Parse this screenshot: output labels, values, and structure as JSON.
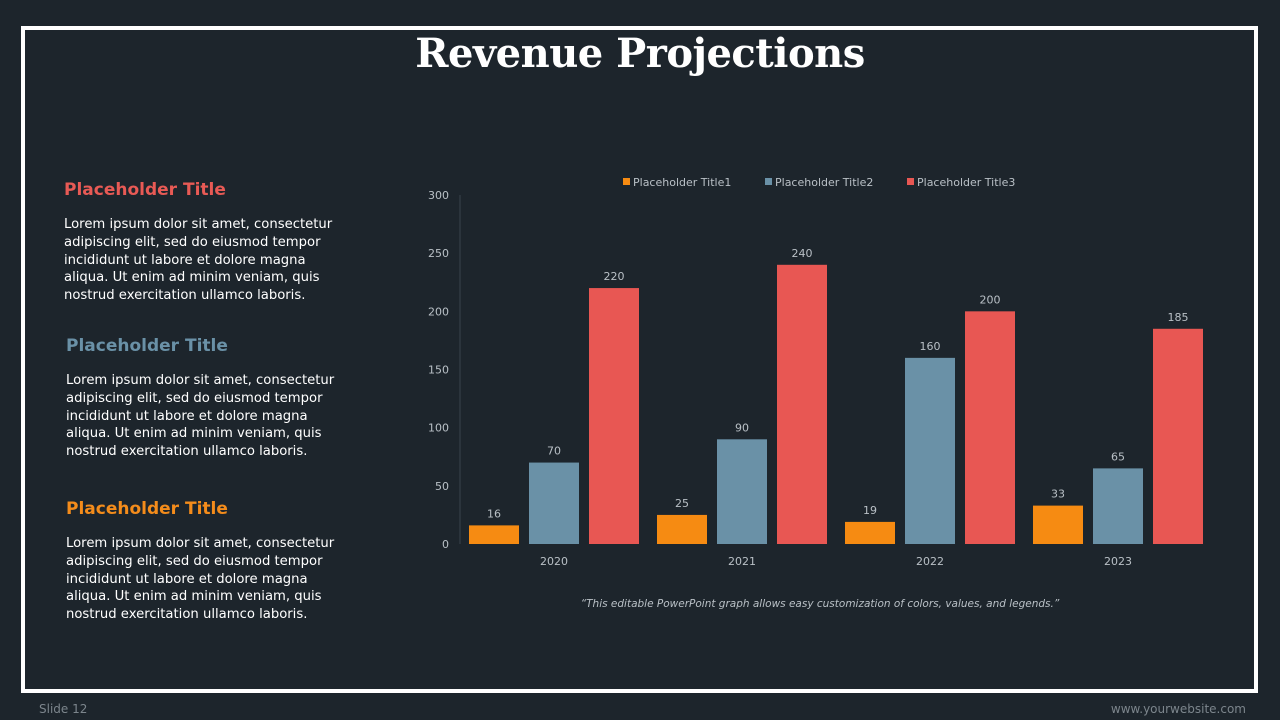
{
  "slide": {
    "title": "Revenue Projections",
    "footer_left": "Slide 12",
    "footer_right": "www.yourwebsite.com",
    "caption": "“This editable PowerPoint graph allows easy customization of colors, values, and legends.”"
  },
  "sections": [
    {
      "title": "Placeholder Title",
      "color": "#e85a55",
      "body": "Lorem ipsum dolor sit amet, consectetur adipiscing elit, sed do eiusmod tempor incididunt ut labore et dolore magna aliqua. Ut enim ad minim veniam, quis nostrud exercitation ullamco laboris."
    },
    {
      "title": "Placeholder Title",
      "color": "#6a91a7",
      "body": "Lorem ipsum dolor sit amet, consectetur adipiscing elit, sed do eiusmod tempor incididunt ut labore et dolore magna aliqua. Ut enim ad minim veniam, quis nostrud exercitation ullamco laboris."
    },
    {
      "title": "Placeholder Title",
      "color": "#f48c1b",
      "body": "Lorem ipsum dolor sit amet, consectetur adipiscing elit, sed do eiusmod tempor incididunt ut labore et dolore magna aliqua. Ut enim ad minim veniam, quis nostrud exercitation ullamco laboris."
    }
  ],
  "chart_data": {
    "type": "bar",
    "title": "",
    "xlabel": "",
    "ylabel": "",
    "categories": [
      "2020",
      "2021",
      "2022",
      "2023"
    ],
    "series": [
      {
        "name": "Placeholder Title1",
        "color": "#f68b12",
        "values": [
          16,
          25,
          19,
          33
        ]
      },
      {
        "name": "Placeholder Title2",
        "color": "#6a91a7",
        "values": [
          70,
          90,
          160,
          65
        ]
      },
      {
        "name": "Placeholder Title3",
        "color": "#e85753",
        "values": [
          220,
          240,
          200,
          185
        ]
      }
    ],
    "ylim": [
      0,
      300
    ],
    "yticks": [
      0,
      50,
      100,
      150,
      200,
      250,
      300
    ],
    "grid": false,
    "legend": "top",
    "data_labels": true
  }
}
